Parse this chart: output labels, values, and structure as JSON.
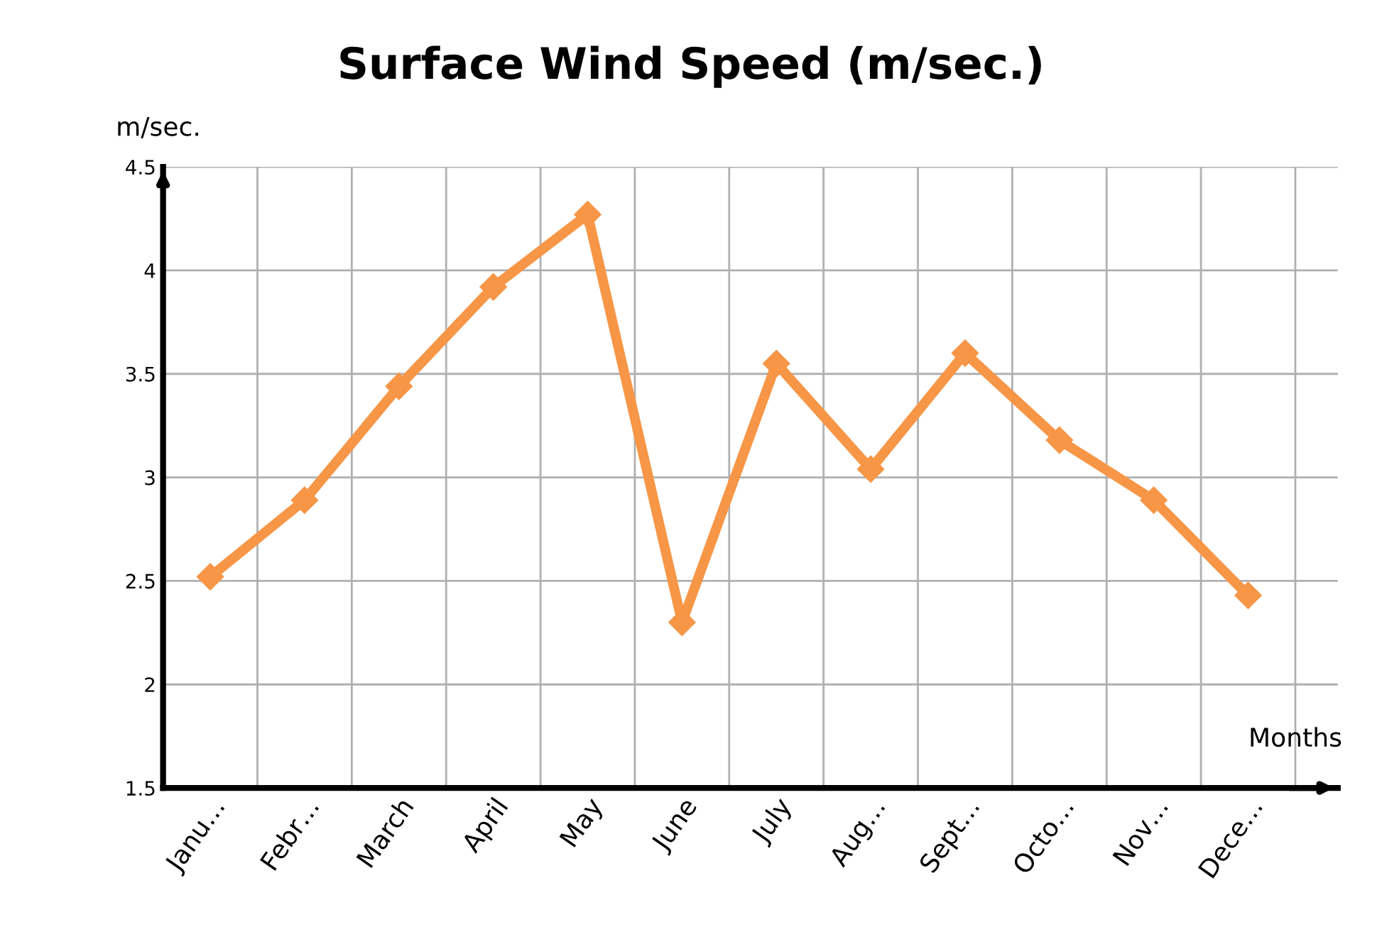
{
  "chart_data": {
    "type": "line",
    "title": "Surface Wind Speed (m/sec.)",
    "xlabel": "Months",
    "ylabel": "m/sec.",
    "categories": [
      "Janu…",
      "Febr…",
      "March",
      "April",
      "May",
      "June",
      "July",
      "Aug…",
      "Sept…",
      "Octo…",
      "Nov…",
      "Dece…"
    ],
    "series": [
      {
        "color": "#f79646",
        "values": [
          2.52,
          2.89,
          3.44,
          3.92,
          4.27,
          2.3,
          3.55,
          3.04,
          3.6,
          3.18,
          2.89,
          2.43
        ]
      }
    ],
    "ylim": [
      1.5,
      4.5
    ],
    "yticks": [
      1.5,
      2,
      2.5,
      3,
      3.5,
      4,
      4.5
    ],
    "grid": true,
    "marker": "diamond",
    "line_style": "solid",
    "legend": false
  }
}
